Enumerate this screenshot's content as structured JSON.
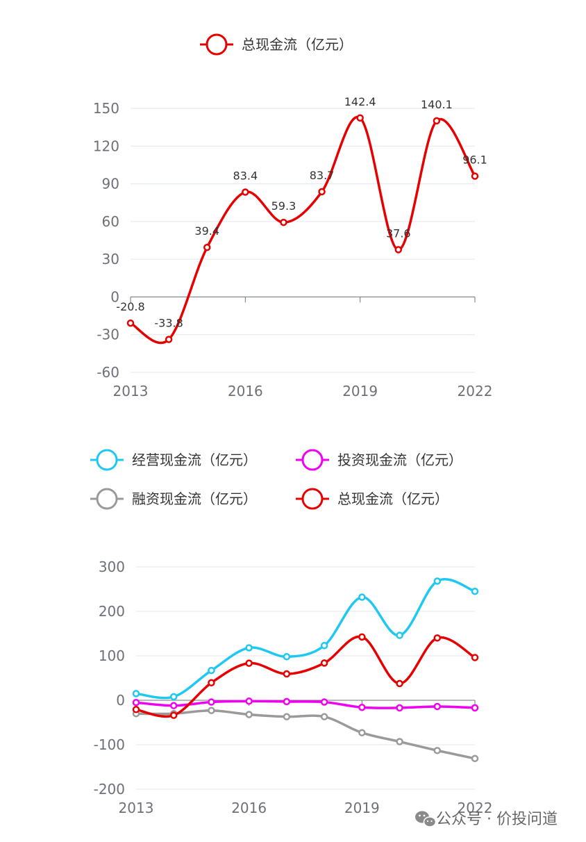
{
  "chart_data": [
    {
      "type": "line",
      "smooth": true,
      "x": [
        "2013",
        "2014",
        "2015",
        "2016",
        "2017",
        "2018",
        "2019",
        "2020",
        "2021",
        "2022"
      ],
      "xticks": [
        "2013",
        "2016",
        "2019",
        "2022"
      ],
      "ylim": [
        -60,
        150
      ],
      "yticks": [
        -60,
        -30,
        0,
        30,
        60,
        90,
        120,
        150
      ],
      "grid": true,
      "legend_position": "top-center",
      "series": [
        {
          "name": "总现金流（亿元）",
          "color": "#e60000",
          "values": [
            -20.8,
            -33.8,
            39.4,
            83.4,
            59.3,
            83.7,
            142.4,
            37.6,
            140.1,
            96.1
          ]
        }
      ],
      "data_labels": [
        "-20.8",
        "-33.8",
        "39.4",
        "83.4",
        "59.3",
        "83.7",
        "142.4",
        "37.6",
        "140.1",
        "96.1"
      ]
    },
    {
      "type": "line",
      "smooth": true,
      "x": [
        "2013",
        "2014",
        "2015",
        "2016",
        "2017",
        "2018",
        "2019",
        "2020",
        "2021",
        "2022"
      ],
      "xticks": [
        "2013",
        "2016",
        "2019",
        "2022"
      ],
      "ylim": [
        -200,
        300
      ],
      "yticks": [
        -200,
        -100,
        0,
        100,
        200,
        300
      ],
      "grid": true,
      "legend_position": "top-center",
      "series": [
        {
          "name": "经营现金流（亿元）",
          "color": "#1ec8f0",
          "values": [
            15,
            8,
            67,
            118,
            98,
            123,
            232,
            146,
            268,
            245
          ]
        },
        {
          "name": "投资现金流（亿元）",
          "color": "#f000f0",
          "values": [
            -5,
            -12,
            -4,
            -2,
            -3,
            -4,
            -16,
            -17,
            -14,
            -17
          ]
        },
        {
          "name": "融资现金流（亿元）",
          "color": "#9a9a9a",
          "values": [
            -30,
            -30,
            -23,
            -32,
            -37,
            -37,
            -73,
            -93,
            -113,
            -131
          ]
        },
        {
          "name": "总现金流（亿元）",
          "color": "#e60000",
          "values": [
            -20.8,
            -33.8,
            39.4,
            83.4,
            59.3,
            83.7,
            142.4,
            37.6,
            140.1,
            96.1
          ]
        }
      ]
    }
  ],
  "watermark": {
    "text": "公众号 · 价投问道",
    "icon": "wechat-icon"
  }
}
